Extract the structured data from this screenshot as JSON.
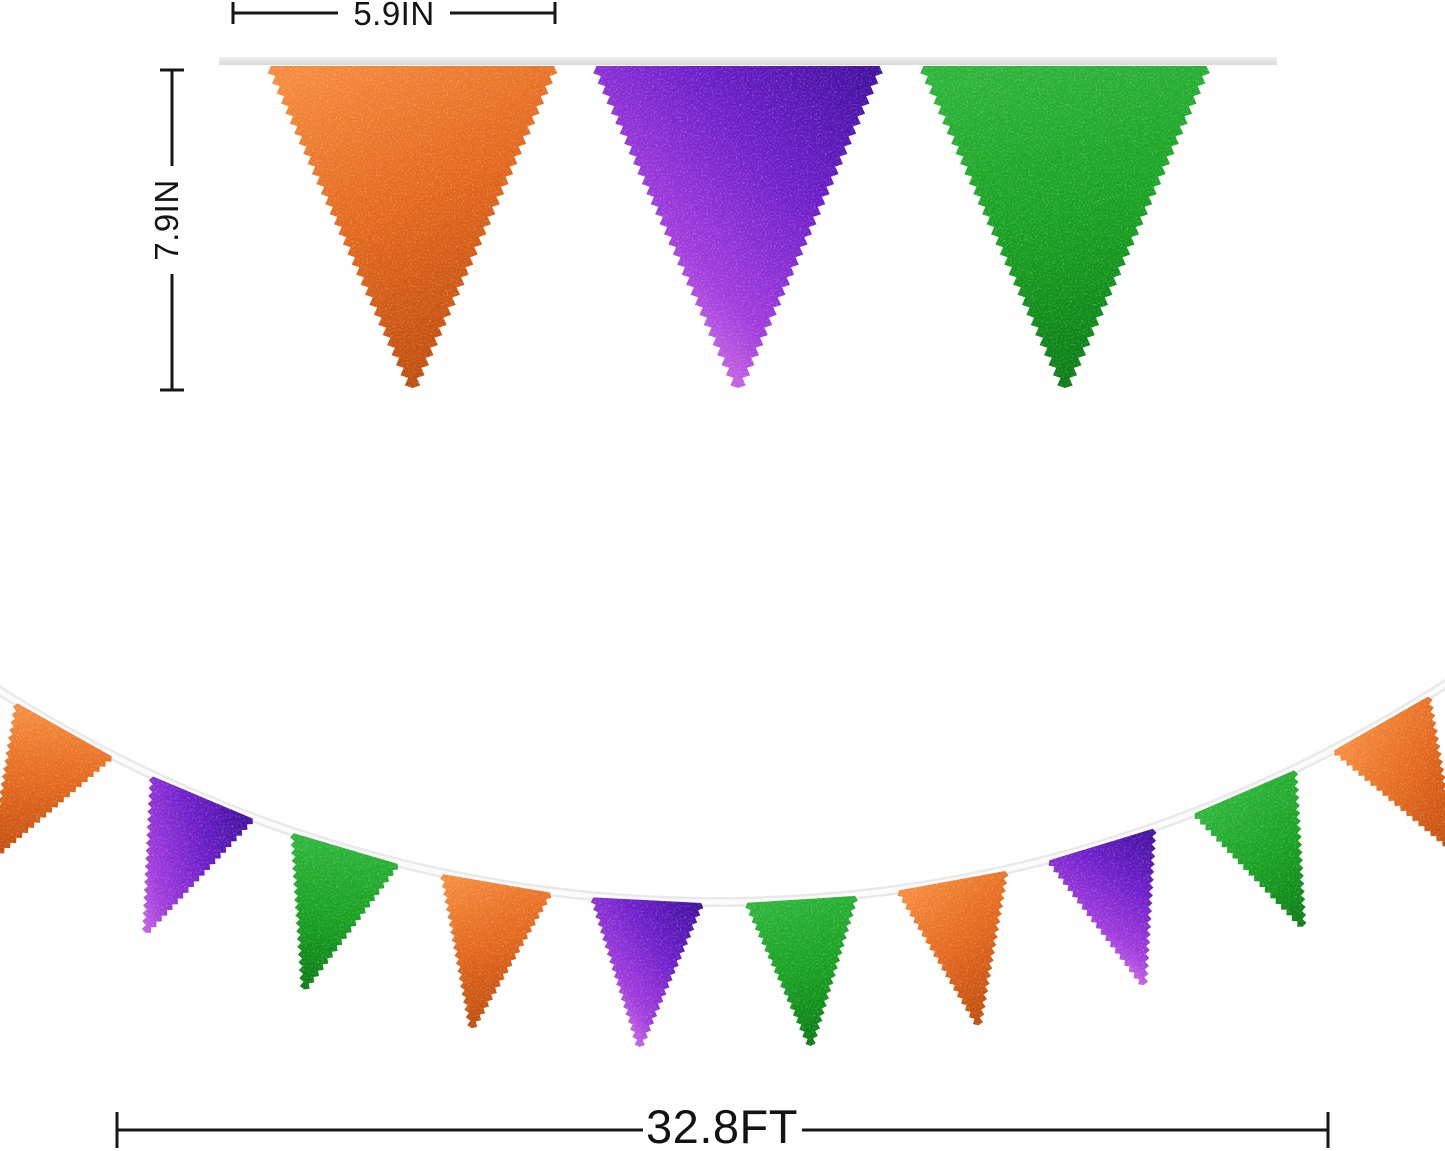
{
  "scene": {
    "description": "Metallic foil triangle pennant banner product image with dimension annotations",
    "background": "#ffffff"
  },
  "annotations": {
    "flag_width": "5.9IN",
    "flag_height": "7.9IN",
    "banner_length": "32.8FT",
    "line_color": "#161616"
  },
  "colors": {
    "orange": "#E2661B",
    "purple": "#6B1CC9",
    "green": "#17A020",
    "string_top": "#E4E4E4",
    "string_bottom": "#ECECEC"
  },
  "foil_gradients": {
    "orange": [
      "#F68A3C",
      "#E2661B",
      "#BC4B0C"
    ],
    "purple": [
      "#42109E",
      "#6B1CC9",
      "#A03BDC",
      "#F193EE"
    ],
    "green": [
      "#2CB438",
      "#17A020",
      "#0A7A14"
    ]
  },
  "top_banner": {
    "flags": [
      "orange",
      "purple",
      "green"
    ]
  },
  "bottom_banner": {
    "flags": [
      "orange",
      "purple",
      "green",
      "orange",
      "purple",
      "green",
      "orange",
      "purple",
      "green",
      "orange"
    ]
  }
}
